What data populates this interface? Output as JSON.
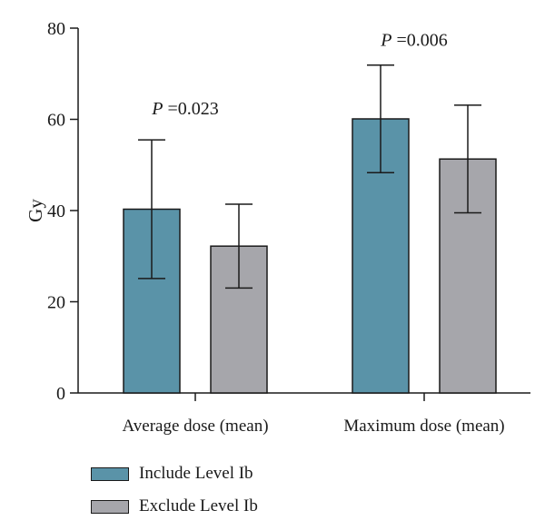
{
  "chart_data": {
    "type": "bar",
    "categories": [
      "Average dose (mean)",
      "Maximum dose (mean)"
    ],
    "series": [
      {
        "name": "Include Level Ib",
        "color": "#5a93a8",
        "values": [
          40.3,
          60.1
        ],
        "error": [
          15.2,
          11.8
        ]
      },
      {
        "name": "Exclude Level Ib",
        "color": "#a6a6ab",
        "values": [
          32.2,
          51.3
        ],
        "error": [
          9.2,
          11.8
        ]
      }
    ],
    "title": "",
    "xlabel": "",
    "ylabel": "Gy",
    "ylim": [
      0,
      80
    ],
    "yticks": [
      0,
      20,
      40,
      60,
      80
    ],
    "grid": false,
    "legend": "bottom-left",
    "annotations": [
      {
        "category": 0,
        "text_italic": "P",
        "text_rest": " =0.023",
        "value": 62.5
      },
      {
        "category": 1,
        "text_italic": "P",
        "text_rest": " =0.006",
        "value": 77.5
      }
    ]
  }
}
